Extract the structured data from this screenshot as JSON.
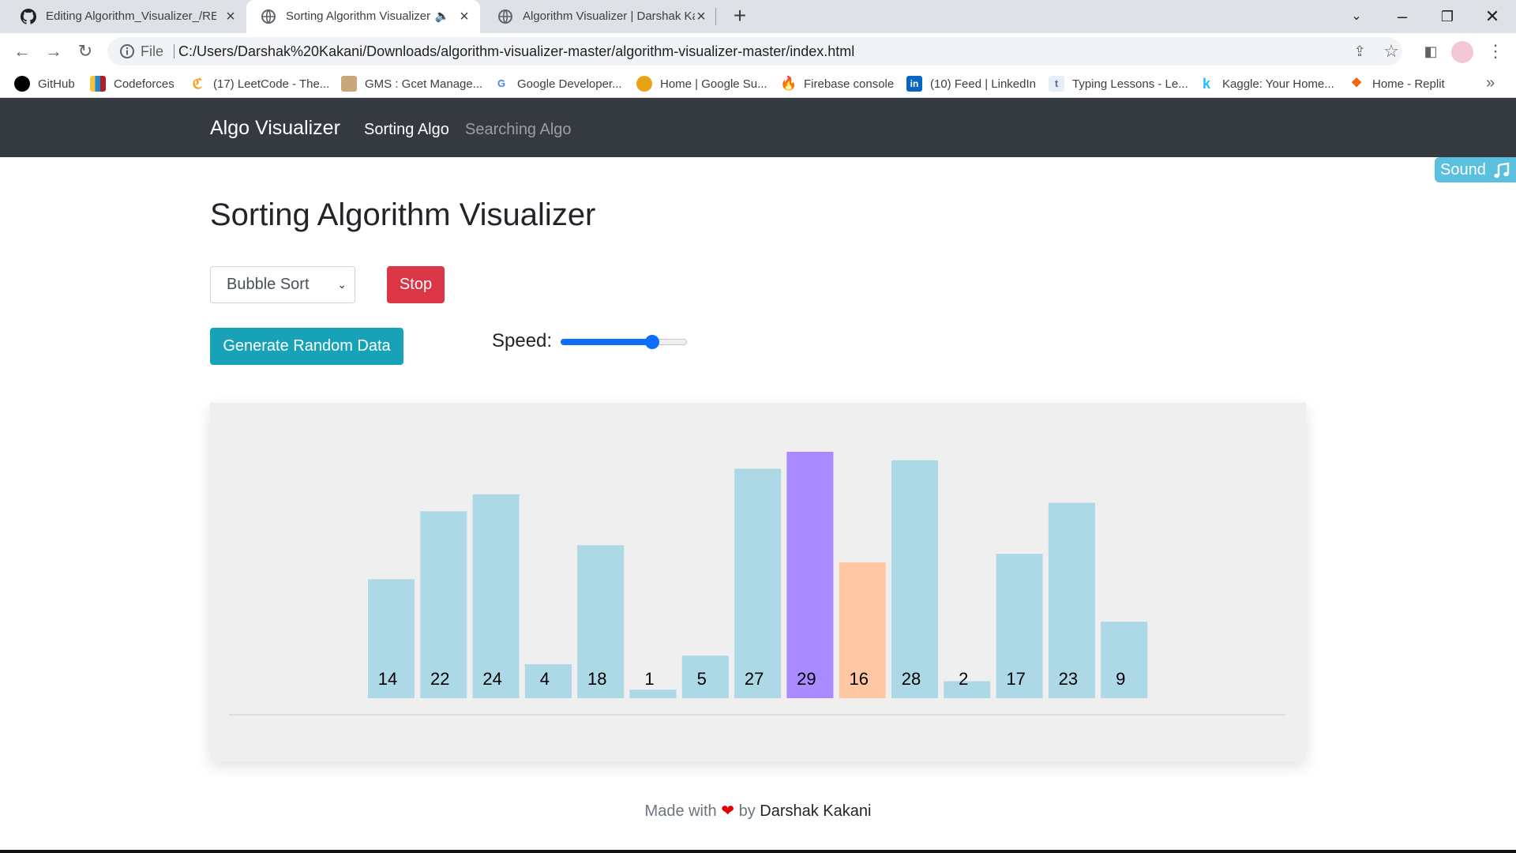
{
  "browser": {
    "tabs": [
      {
        "title": "Editing Algorithm_Visualizer_/READ",
        "icon": "github-icon",
        "active": false
      },
      {
        "title": "Sorting Algorithm Visualizer",
        "icon": "globe-icon",
        "active": true,
        "audio": true
      },
      {
        "title": "Algorithm Visualizer | Darshak Ka",
        "icon": "globe-icon",
        "active": false
      }
    ],
    "address": {
      "scheme_label": "File",
      "url": "C:/Users/Darshak%20Kakani/Downloads/algorithm-visualizer-master/algorithm-visualizer-master/index.html"
    },
    "bookmarks": [
      {
        "label": "GitHub",
        "icon": "github-icon",
        "color": "#000000"
      },
      {
        "label": "Codeforces",
        "icon": "codeforces-icon",
        "color": "#1f8acb"
      },
      {
        "label": "(17) LeetCode - The...",
        "icon": "leetcode-icon",
        "color": "#f89f1b"
      },
      {
        "label": "GMS : Gcet Manage...",
        "icon": "gms-icon",
        "color": "#8b6b4a"
      },
      {
        "label": "Google Developer...",
        "icon": "google-icon",
        "color": "#4285f4"
      },
      {
        "label": "Home | Google Su...",
        "icon": "sun-icon",
        "color": "#e8a317"
      },
      {
        "label": "Firebase console",
        "icon": "firebase-icon",
        "color": "#ffca28"
      },
      {
        "label": "(10) Feed | LinkedIn",
        "icon": "linkedin-icon",
        "color": "#0a66c2"
      },
      {
        "label": "Typing Lessons - Le...",
        "icon": "typing-icon",
        "color": "#7aa7d6"
      },
      {
        "label": "Kaggle: Your Home...",
        "icon": "kaggle-icon",
        "color": "#20beff"
      },
      {
        "label": "Home - Replit",
        "icon": "replit-icon",
        "color": "#f26207"
      }
    ]
  },
  "nav": {
    "brand": "Algo Visualizer",
    "links": [
      "Sorting Algo",
      "Searching Algo"
    ]
  },
  "sound_button": "Sound",
  "page_title": "Sorting Algorithm Visualizer",
  "controls": {
    "algorithm_selected": "Bubble Sort",
    "stop_label": "Stop",
    "generate_label": "Generate Random Data",
    "speed_label": "Speed:",
    "speed_value": 0.75
  },
  "chart_data": {
    "type": "bar",
    "categories": [
      "14",
      "22",
      "24",
      "4",
      "18",
      "1",
      "5",
      "27",
      "29",
      "16",
      "28",
      "2",
      "17",
      "23",
      "9"
    ],
    "values": [
      14,
      22,
      24,
      4,
      18,
      1,
      5,
      27,
      29,
      16,
      28,
      2,
      17,
      23,
      9
    ],
    "bar_states": [
      "default",
      "default",
      "default",
      "default",
      "default",
      "default",
      "default",
      "default",
      "comparing",
      "swapping",
      "default",
      "default",
      "default",
      "default",
      "default"
    ],
    "colors": {
      "default": "#add8e6",
      "comparing": "#a98bff",
      "swapping": "#ffc8a2"
    },
    "title": "",
    "xlabel": "",
    "ylabel": "",
    "ylim": [
      0,
      29
    ]
  },
  "footer": {
    "prefix": "Made with",
    "heart": "❤",
    "by": "by",
    "author": "Darshak Kakani"
  }
}
